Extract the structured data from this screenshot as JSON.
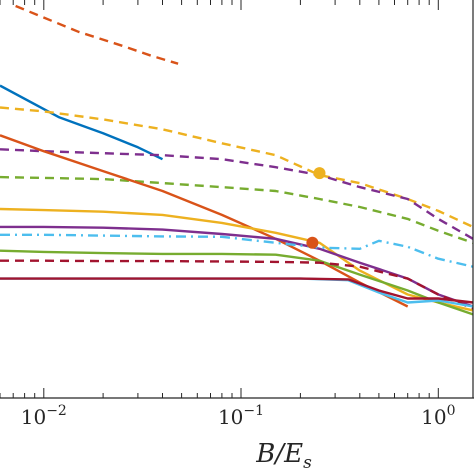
{
  "chart_data": {
    "type": "line",
    "title": "",
    "xlabel": "B/E",
    "xlabel_subscript": "s",
    "ylabel": "",
    "x_scale": "log",
    "xlim": [
      0.006,
      1.5
    ],
    "ylim": [
      0,
      1
    ],
    "grid": false,
    "legend": "none",
    "x_ticks": [
      {
        "value": 0.01,
        "label": "10",
        "exp": "−2"
      },
      {
        "value": 0.1,
        "label": "10",
        "exp": "−1"
      },
      {
        "value": 1,
        "label": "10",
        "exp": "0"
      }
    ],
    "series": [
      {
        "color": "#D95319",
        "style": "dashed",
        "x": [
          0.0072,
          0.015,
          0.025,
          0.035,
          0.048
        ],
        "y": [
          0.985,
          0.92,
          0.885,
          0.86,
          0.84
        ]
      },
      {
        "color": "#0072BD",
        "style": "solid",
        "x": [
          0.006,
          0.012,
          0.02,
          0.03,
          0.04
        ],
        "y": [
          0.785,
          0.705,
          0.665,
          0.63,
          0.6
        ]
      },
      {
        "color": "#EDB120",
        "style": "dashed",
        "x": [
          0.006,
          0.01,
          0.02,
          0.04,
          0.08,
          0.15,
          0.25,
          0.4,
          0.7,
          1.0,
          1.5
        ],
        "y": [
          0.73,
          0.72,
          0.7,
          0.675,
          0.64,
          0.61,
          0.56,
          0.54,
          0.5,
          0.47,
          0.43
        ]
      },
      {
        "color": "#7E2F8E",
        "style": "dashed",
        "x": [
          0.006,
          0.01,
          0.02,
          0.04,
          0.08,
          0.15,
          0.25,
          0.4,
          0.7,
          1.0,
          1.5
        ],
        "y": [
          0.625,
          0.62,
          0.615,
          0.61,
          0.6,
          0.58,
          0.56,
          0.53,
          0.5,
          0.45,
          0.4
        ]
      },
      {
        "color": "#77AC30",
        "style": "dashed",
        "x": [
          0.006,
          0.01,
          0.02,
          0.04,
          0.08,
          0.15,
          0.25,
          0.4,
          0.7,
          1.0,
          1.5
        ],
        "y": [
          0.555,
          0.553,
          0.55,
          0.54,
          0.53,
          0.52,
          0.5,
          0.48,
          0.45,
          0.42,
          0.39
        ]
      },
      {
        "color": "#D95319",
        "style": "solid",
        "x": [
          0.006,
          0.01,
          0.02,
          0.04,
          0.08,
          0.15,
          0.25,
          0.4,
          0.7
        ],
        "y": [
          0.66,
          0.62,
          0.57,
          0.52,
          0.46,
          0.4,
          0.345,
          0.29,
          0.23
        ]
      },
      {
        "color": "#EDB120",
        "style": "solid",
        "x": [
          0.006,
          0.01,
          0.02,
          0.04,
          0.08,
          0.15,
          0.25,
          0.4,
          0.7,
          1.0,
          1.5
        ],
        "y": [
          0.475,
          0.472,
          0.468,
          0.46,
          0.44,
          0.415,
          0.39,
          0.32,
          0.26,
          0.24,
          0.22
        ]
      },
      {
        "color": "#7E2F8E",
        "style": "solid",
        "x": [
          0.006,
          0.01,
          0.02,
          0.04,
          0.08,
          0.15,
          0.25,
          0.4,
          0.7,
          1.0,
          1.5
        ],
        "y": [
          0.43,
          0.43,
          0.428,
          0.423,
          0.412,
          0.4,
          0.375,
          0.34,
          0.3,
          0.26,
          0.23
        ]
      },
      {
        "color": "#4DBEEE",
        "style": "dashdot",
        "x": [
          0.006,
          0.01,
          0.02,
          0.04,
          0.08,
          0.15,
          0.25,
          0.4,
          0.5,
          0.7,
          1.0,
          1.5
        ],
        "y": [
          0.41,
          0.41,
          0.408,
          0.406,
          0.405,
          0.39,
          0.378,
          0.375,
          0.395,
          0.38,
          0.35,
          0.33
        ]
      },
      {
        "color": "#77AC30",
        "style": "solid",
        "x": [
          0.006,
          0.01,
          0.02,
          0.04,
          0.08,
          0.15,
          0.25,
          0.4,
          0.7,
          1.0,
          1.5
        ],
        "y": [
          0.37,
          0.367,
          0.364,
          0.362,
          0.362,
          0.36,
          0.345,
          0.31,
          0.27,
          0.24,
          0.21
        ]
      },
      {
        "color": "#A2142F",
        "style": "dashed",
        "x": [
          0.006,
          0.01,
          0.02,
          0.04,
          0.08,
          0.15,
          0.25,
          0.4,
          0.7,
          1.0,
          1.5
        ],
        "y": [
          0.345,
          0.345,
          0.344,
          0.344,
          0.343,
          0.342,
          0.34,
          0.33,
          0.3,
          0.26,
          0.225
        ]
      },
      {
        "color": "#4DBEEE",
        "style": "solid",
        "x": [
          0.006,
          0.05,
          0.1,
          0.2,
          0.35,
          0.5,
          0.7,
          1.0,
          1.5
        ],
        "y": [
          0.3,
          0.3,
          0.3,
          0.3,
          0.296,
          0.265,
          0.24,
          0.245,
          0.23
        ]
      },
      {
        "color": "#A2142F",
        "style": "solid",
        "x": [
          0.006,
          0.05,
          0.1,
          0.2,
          0.35,
          0.5,
          0.7,
          1.0,
          1.5
        ],
        "y": [
          0.3,
          0.3,
          0.3,
          0.3,
          0.298,
          0.27,
          0.25,
          0.25,
          0.24
        ]
      }
    ],
    "markers": [
      {
        "color": "#EDB120",
        "x": 0.25,
        "y": 0.565
      },
      {
        "color": "#D95319",
        "x": 0.23,
        "y": 0.39
      }
    ]
  }
}
